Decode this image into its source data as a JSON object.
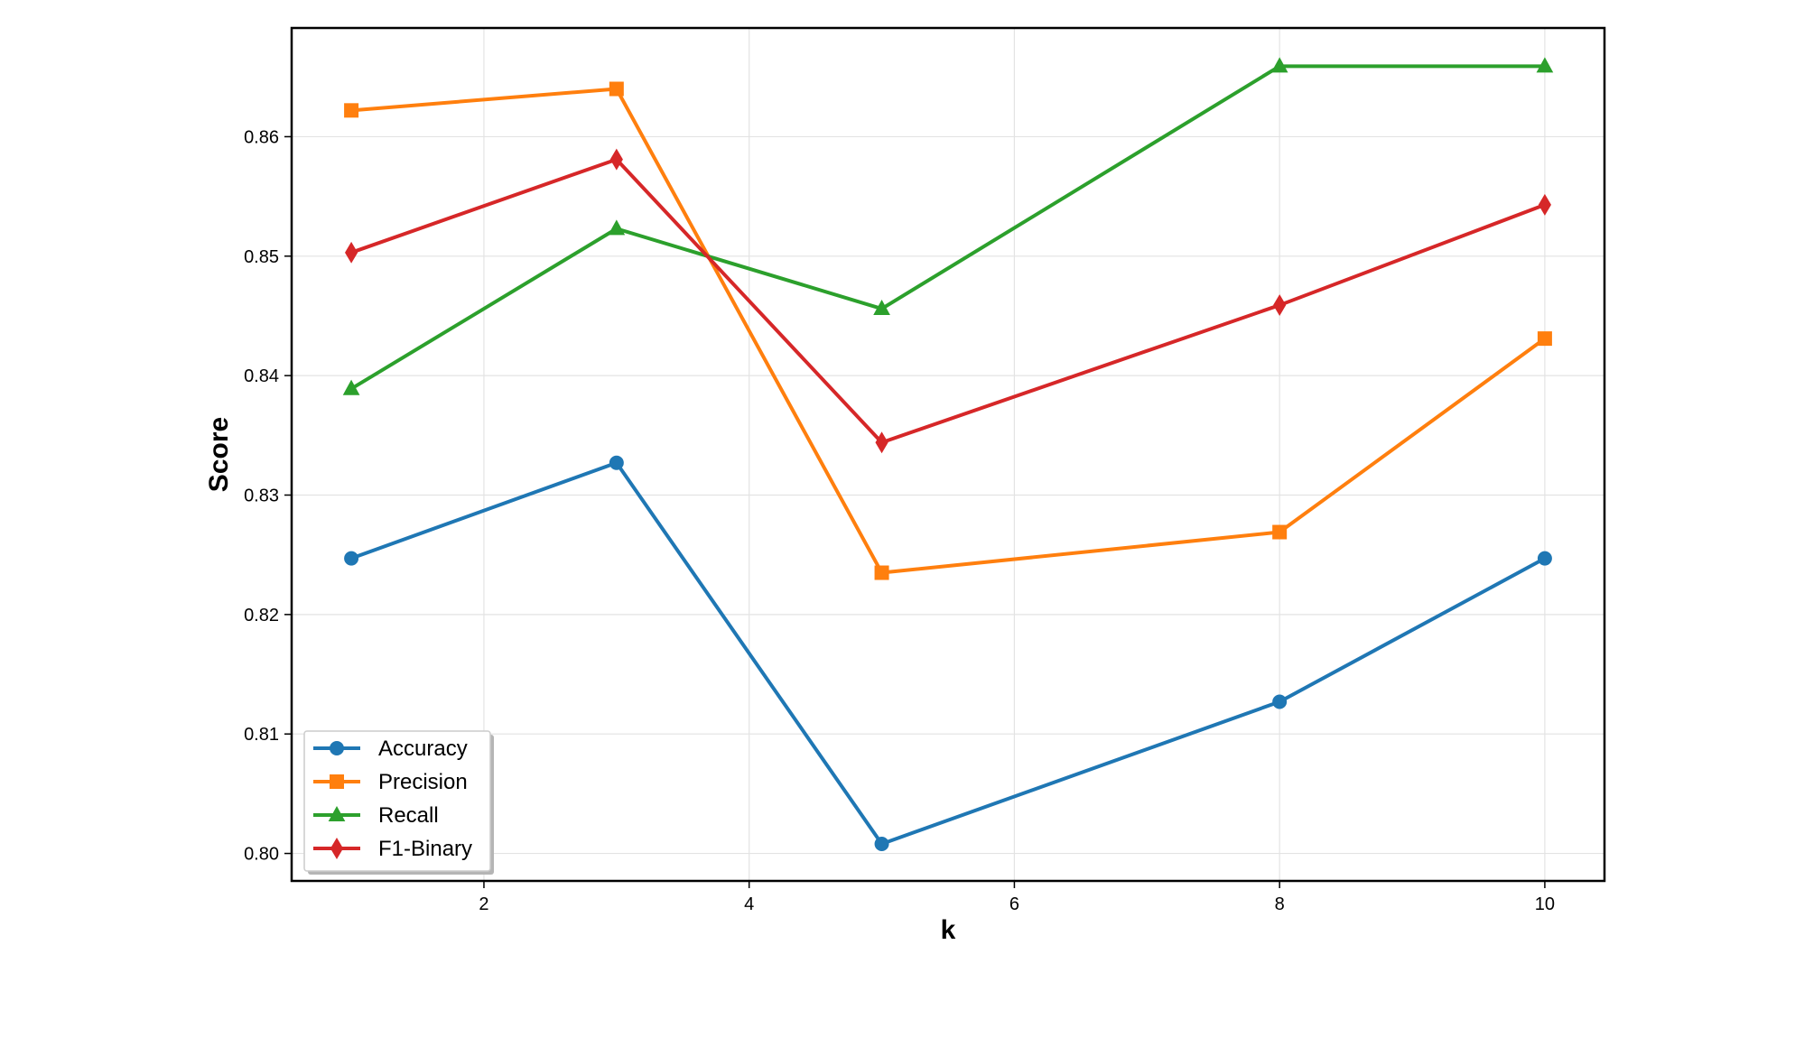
{
  "chart_data": {
    "type": "line",
    "title": "",
    "xlabel": "k",
    "ylabel": "Score",
    "x": [
      1,
      3,
      5,
      8,
      10
    ],
    "xlim": [
      0.55,
      10.45
    ],
    "ylim": [
      0.7977,
      0.8691
    ],
    "x_ticks": [
      "2",
      "4",
      "6",
      "8",
      "10"
    ],
    "y_ticks": [
      "0.80",
      "0.81",
      "0.82",
      "0.83",
      "0.84",
      "0.85",
      "0.86"
    ],
    "grid": true,
    "legend_position": "lower-left",
    "series": [
      {
        "name": "Accuracy",
        "marker": "circle",
        "color": "#1f77b4",
        "values": [
          0.8247,
          0.8327,
          0.8008,
          0.8127,
          0.8247
        ]
      },
      {
        "name": "Precision",
        "marker": "square",
        "color": "#ff7f0e",
        "values": [
          0.8622,
          0.864,
          0.8235,
          0.8269,
          0.8431
        ]
      },
      {
        "name": "Recall",
        "marker": "triangle",
        "color": "#2ca02c",
        "values": [
          0.8389,
          0.8523,
          0.8456,
          0.8659,
          0.8659
        ]
      },
      {
        "name": "F1-Binary",
        "marker": "diamond",
        "color": "#d62728",
        "values": [
          0.8503,
          0.8581,
          0.8344,
          0.8459,
          0.8543
        ]
      }
    ]
  }
}
